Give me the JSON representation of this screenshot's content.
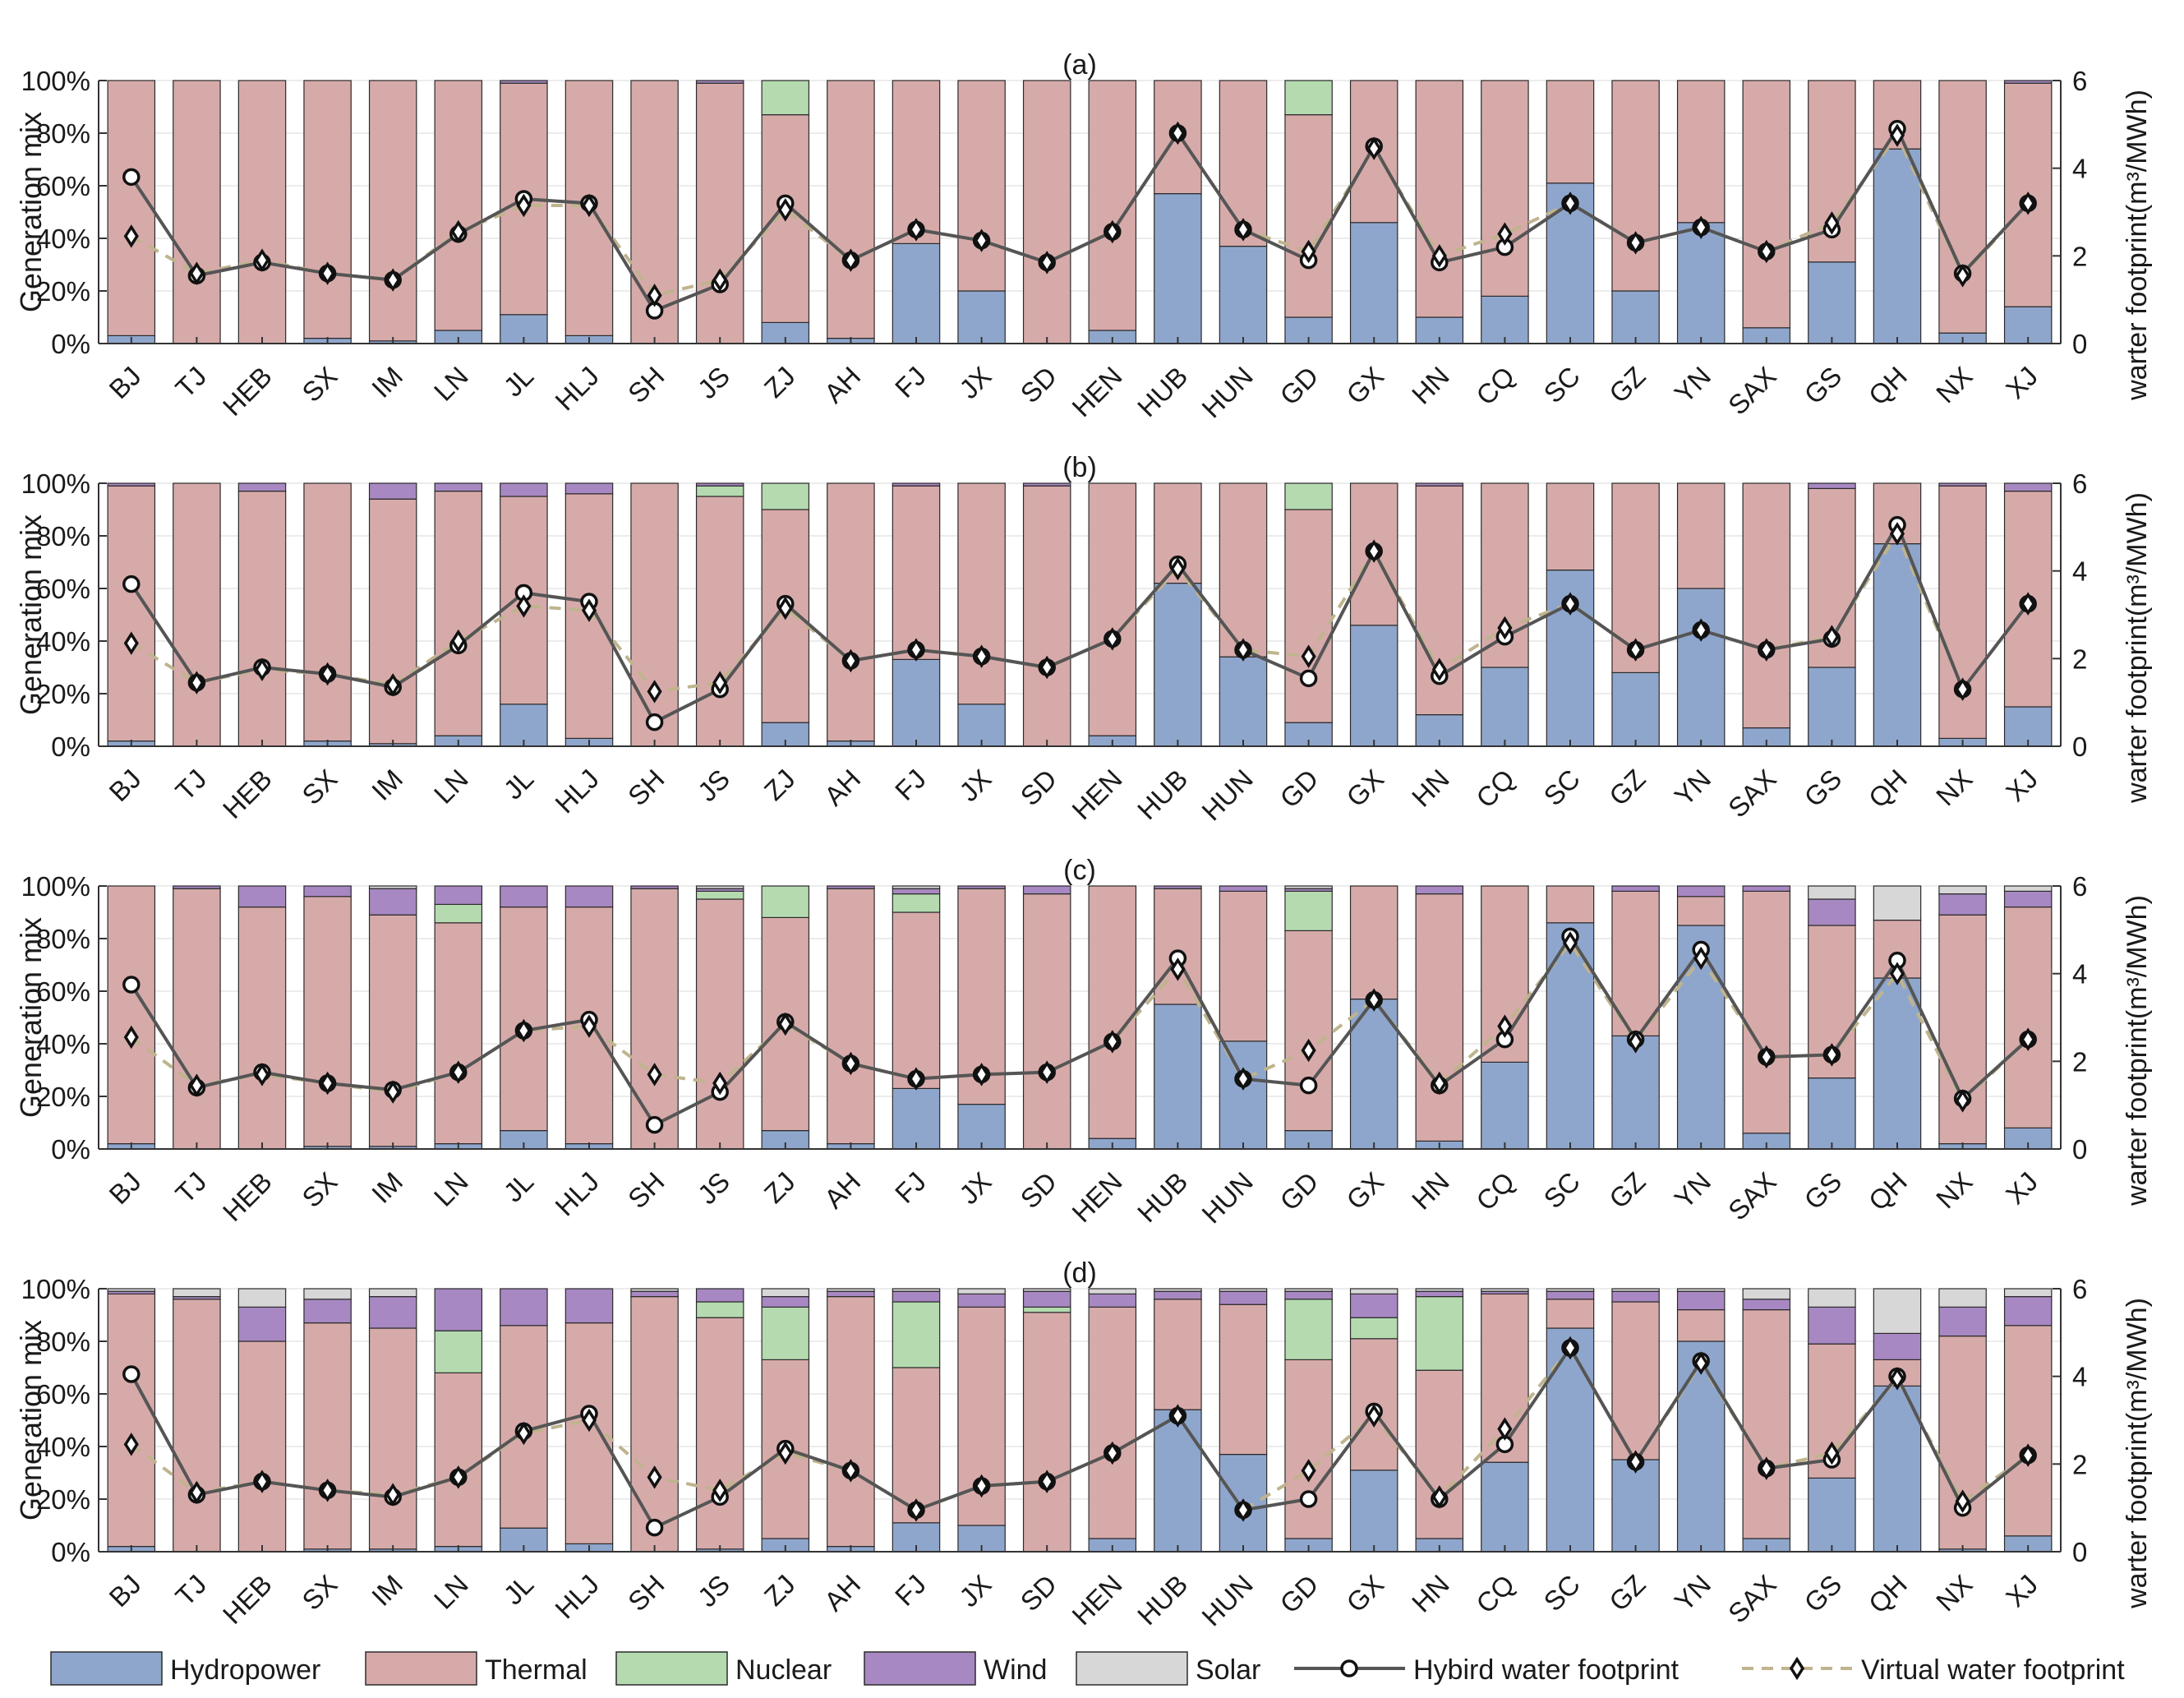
{
  "legend": {
    "hydro": "Hydropower",
    "thermal": "Thermal",
    "nuclear": "Nuclear",
    "wind": "Wind",
    "solar": "Solar",
    "hybrid": "Hybird water footprint",
    "virtual": "Virtual water footprint"
  },
  "colors": {
    "hydro": "#8fa6cc",
    "thermal": "#d7aaaa",
    "nuclear": "#b5dab0",
    "wind": "#a888c2",
    "solar": "#d7d7d7",
    "hybrid_line": "#555555",
    "virtual_line": "#bfb48e",
    "bar_edge": "#2b2b2b"
  },
  "chart_data": {
    "type": "bar",
    "stacked": true,
    "categories": [
      "BJ",
      "TJ",
      "HEB",
      "SX",
      "IM",
      "LN",
      "JL",
      "HLJ",
      "SH",
      "JS",
      "ZJ",
      "AH",
      "FJ",
      "JX",
      "SD",
      "HEN",
      "HUB",
      "HUN",
      "GD",
      "GX",
      "HN",
      "CQ",
      "SC",
      "GZ",
      "YN",
      "SAX",
      "GS",
      "QH",
      "NX",
      "XJ"
    ],
    "ylabel": "Generation mix",
    "y2label": "warter footprint(m³/MWh)",
    "yticks": [
      "0%",
      "20%",
      "40%",
      "60%",
      "80%",
      "100%"
    ],
    "y2ticks": [
      "0",
      "2",
      "4",
      "6"
    ],
    "ylim": [
      0,
      100
    ],
    "y2lim": [
      0,
      6
    ],
    "panels": [
      {
        "label": "(a)",
        "hydro": [
          3,
          0,
          0,
          2,
          1,
          5,
          11,
          3,
          0,
          0,
          8,
          2,
          38,
          20,
          0,
          5,
          57,
          37,
          10,
          46,
          10,
          18,
          61,
          20,
          46,
          6,
          31,
          74,
          4,
          14
        ],
        "nuclear": [
          0,
          0,
          0,
          0,
          0,
          0,
          0,
          0,
          0,
          0,
          13,
          0,
          0,
          0,
          0,
          0,
          0,
          0,
          13,
          0,
          0,
          0,
          0,
          0,
          0,
          0,
          0,
          0,
          0,
          0
        ],
        "wind": [
          0,
          0,
          0,
          0,
          0,
          0,
          1,
          0,
          0,
          1,
          0,
          0,
          0,
          0,
          0,
          0,
          0,
          0,
          0,
          0,
          0,
          0,
          0,
          0,
          0,
          0,
          0,
          0,
          0,
          1
        ],
        "solar": [
          0,
          0,
          0,
          0,
          0,
          0,
          0,
          0,
          0,
          0,
          0,
          0,
          0,
          0,
          0,
          0,
          0,
          0,
          0,
          0,
          0,
          0,
          0,
          0,
          0,
          0,
          0,
          0,
          0,
          0
        ],
        "hybrid": [
          3.8,
          1.55,
          1.85,
          1.6,
          1.45,
          2.5,
          3.3,
          3.2,
          0.75,
          1.35,
          3.2,
          1.9,
          2.6,
          2.35,
          1.85,
          2.55,
          4.8,
          2.6,
          1.9,
          4.5,
          1.85,
          2.2,
          3.2,
          2.3,
          2.65,
          2.1,
          2.6,
          4.9,
          1.6,
          3.2
        ],
        "virtual": [
          2.45,
          1.6,
          1.9,
          1.6,
          1.45,
          2.55,
          3.15,
          3.15,
          1.1,
          1.45,
          3.05,
          1.9,
          2.6,
          2.35,
          1.85,
          2.55,
          4.8,
          2.6,
          2.1,
          4.45,
          2.0,
          2.5,
          3.2,
          2.3,
          2.65,
          2.1,
          2.75,
          4.75,
          1.55,
          3.2
        ]
      },
      {
        "label": "(b)",
        "hydro": [
          2,
          0,
          0,
          2,
          1,
          4,
          16,
          3,
          0,
          0,
          9,
          2,
          33,
          16,
          0,
          4,
          62,
          34,
          9,
          46,
          12,
          30,
          67,
          28,
          60,
          7,
          30,
          77,
          3,
          15
        ],
        "nuclear": [
          0,
          0,
          0,
          0,
          0,
          0,
          0,
          0,
          0,
          4,
          10,
          0,
          0,
          0,
          0,
          0,
          0,
          0,
          10,
          0,
          0,
          0,
          0,
          0,
          0,
          0,
          0,
          0,
          0,
          0
        ],
        "wind": [
          1,
          0,
          3,
          0,
          6,
          3,
          5,
          4,
          0,
          1,
          0,
          0,
          1,
          0,
          1,
          0,
          0,
          0,
          0,
          0,
          1,
          0,
          0,
          0,
          0,
          0,
          2,
          0,
          1,
          3
        ],
        "solar": [
          0,
          0,
          0,
          0,
          0,
          0,
          0,
          0,
          0,
          0,
          0,
          0,
          0,
          0,
          0,
          0,
          0,
          0,
          0,
          0,
          0,
          0,
          0,
          0,
          0,
          0,
          0,
          0,
          0,
          0
        ],
        "hybrid": [
          3.7,
          1.45,
          1.8,
          1.65,
          1.35,
          2.3,
          3.5,
          3.3,
          0.55,
          1.3,
          3.25,
          1.95,
          2.2,
          2.05,
          1.8,
          2.45,
          4.15,
          2.2,
          1.55,
          4.45,
          1.6,
          2.5,
          3.25,
          2.2,
          2.65,
          2.2,
          2.45,
          5.05,
          1.3,
          3.25
        ],
        "virtual": [
          2.35,
          1.45,
          1.75,
          1.65,
          1.4,
          2.4,
          3.2,
          3.1,
          1.25,
          1.45,
          3.15,
          1.95,
          2.2,
          2.05,
          1.8,
          2.45,
          4.05,
          2.2,
          2.05,
          4.45,
          1.75,
          2.7,
          3.25,
          2.2,
          2.65,
          2.2,
          2.5,
          4.85,
          1.3,
          3.25
        ]
      },
      {
        "label": "(c)",
        "hydro": [
          2,
          0,
          0,
          1,
          1,
          2,
          7,
          2,
          0,
          0,
          7,
          2,
          23,
          17,
          0,
          4,
          55,
          41,
          7,
          57,
          3,
          33,
          86,
          43,
          85,
          6,
          27,
          65,
          2,
          8
        ],
        "nuclear": [
          0,
          0,
          0,
          0,
          0,
          7,
          0,
          0,
          0,
          3,
          12,
          0,
          7,
          0,
          0,
          0,
          0,
          0,
          15,
          0,
          0,
          0,
          0,
          0,
          0,
          0,
          0,
          0,
          0,
          0
        ],
        "wind": [
          0,
          1,
          8,
          4,
          10,
          7,
          8,
          8,
          1,
          1,
          0,
          1,
          2,
          1,
          3,
          0,
          1,
          2,
          1,
          0,
          3,
          0,
          0,
          2,
          4,
          2,
          10,
          0,
          8,
          6
        ],
        "solar": [
          0,
          0,
          0,
          0,
          1,
          0,
          0,
          0,
          0,
          1,
          0,
          0,
          1,
          0,
          0,
          0,
          0,
          0,
          1,
          0,
          0,
          0,
          0,
          0,
          0,
          0,
          5,
          13,
          3,
          2
        ],
        "hybrid": [
          3.75,
          1.4,
          1.75,
          1.5,
          1.35,
          1.75,
          2.7,
          2.95,
          0.55,
          1.3,
          2.9,
          1.95,
          1.6,
          1.7,
          1.75,
          2.45,
          4.35,
          1.6,
          1.45,
          3.4,
          1.45,
          2.5,
          4.85,
          2.5,
          4.55,
          2.1,
          2.15,
          4.3,
          1.15,
          2.5
        ],
        "virtual": [
          2.55,
          1.45,
          1.7,
          1.5,
          1.3,
          1.75,
          2.7,
          2.8,
          1.7,
          1.5,
          2.85,
          1.95,
          1.6,
          1.7,
          1.75,
          2.45,
          4.1,
          1.6,
          2.25,
          3.4,
          1.5,
          2.8,
          4.7,
          2.45,
          4.35,
          2.1,
          2.15,
          4.0,
          1.1,
          2.5
        ]
      },
      {
        "label": "(d)",
        "hydro": [
          2,
          0,
          0,
          1,
          1,
          2,
          9,
          3,
          0,
          1,
          5,
          2,
          11,
          10,
          0,
          5,
          54,
          37,
          5,
          31,
          5,
          34,
          85,
          35,
          80,
          5,
          28,
          63,
          1,
          6
        ],
        "nuclear": [
          0,
          0,
          0,
          0,
          0,
          16,
          0,
          0,
          0,
          6,
          20,
          0,
          25,
          0,
          2,
          0,
          0,
          0,
          23,
          8,
          28,
          0,
          0,
          0,
          0,
          0,
          0,
          0,
          0,
          0
        ],
        "wind": [
          1,
          1,
          13,
          9,
          12,
          16,
          14,
          13,
          2,
          5,
          4,
          2,
          4,
          5,
          6,
          5,
          3,
          5,
          3,
          9,
          2,
          1,
          3,
          4,
          7,
          4,
          14,
          10,
          11,
          11
        ],
        "solar": [
          1,
          3,
          7,
          4,
          3,
          0,
          0,
          0,
          1,
          0,
          3,
          1,
          1,
          2,
          1,
          2,
          1,
          1,
          1,
          2,
          1,
          1,
          1,
          1,
          1,
          4,
          7,
          17,
          7,
          3
        ],
        "hybrid": [
          4.05,
          1.3,
          1.6,
          1.4,
          1.25,
          1.7,
          2.75,
          3.15,
          0.55,
          1.25,
          2.35,
          1.85,
          0.95,
          1.5,
          1.6,
          2.25,
          3.1,
          0.95,
          1.2,
          3.2,
          1.2,
          2.45,
          4.65,
          2.05,
          4.35,
          1.9,
          2.1,
          4.0,
          1.0,
          2.2
        ],
        "virtual": [
          2.45,
          1.35,
          1.6,
          1.4,
          1.3,
          1.7,
          2.7,
          3.0,
          1.7,
          1.4,
          2.25,
          1.85,
          0.95,
          1.5,
          1.6,
          2.25,
          3.1,
          0.95,
          1.85,
          3.1,
          1.25,
          2.8,
          4.65,
          2.05,
          4.3,
          1.9,
          2.25,
          3.95,
          1.15,
          2.2
        ]
      }
    ]
  }
}
